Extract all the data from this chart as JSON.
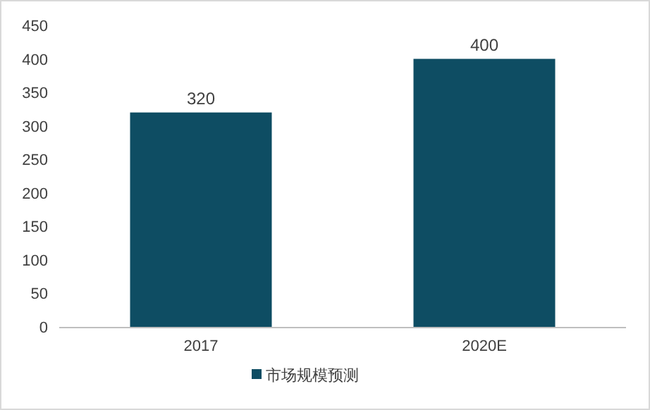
{
  "chart_data": {
    "type": "bar",
    "categories": [
      "2017",
      "2020E"
    ],
    "series": [
      {
        "name": "市场规模预测",
        "color": "#0e4d63",
        "values": [
          320,
          400
        ]
      }
    ],
    "ylim": [
      0,
      450
    ],
    "yticks": [
      0,
      50,
      100,
      150,
      200,
      250,
      300,
      350,
      400,
      450
    ],
    "data_labels": true,
    "legend": "bottom"
  }
}
